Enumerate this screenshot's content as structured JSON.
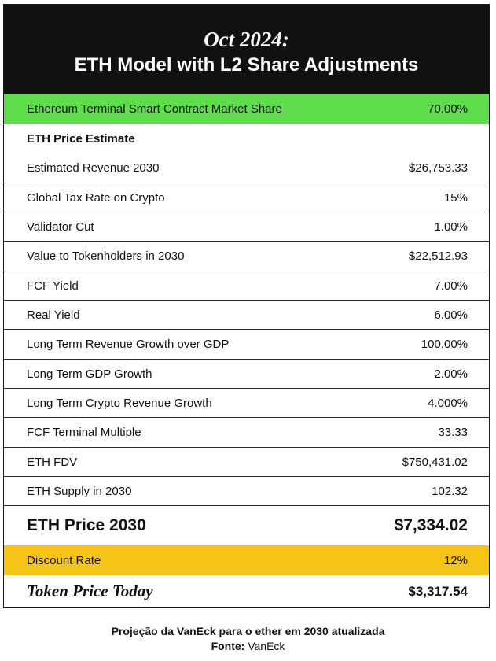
{
  "header": {
    "date": "Oct 2024:",
    "title": "ETH Model with L2 Share Adjustments"
  },
  "rows": [
    {
      "label": "Ethereum Terminal Smart Contract Market Share",
      "value": "70.00%"
    },
    {
      "label": "ETH Price Estimate",
      "value": ""
    },
    {
      "label": "Estimated Revenue 2030",
      "value": "$26,753.33"
    },
    {
      "label": "Global Tax Rate on Crypto",
      "value": "15%"
    },
    {
      "label": "Validator Cut",
      "value": "1.00%"
    },
    {
      "label": "Value to Tokenholders in 2030",
      "value": "$22,512.93"
    },
    {
      "label": "FCF Yield",
      "value": "7.00%"
    },
    {
      "label": "Real Yield",
      "value": "6.00%"
    },
    {
      "label": "Long Term Revenue Growth over GDP",
      "value": "100.00%"
    },
    {
      "label": "Long Term GDP Growth",
      "value": "2.00%"
    },
    {
      "label": "Long Term Crypto Revenue Growth",
      "value": "4.000%"
    },
    {
      "label": "FCF Terminal Multiple",
      "value": "33.33"
    },
    {
      "label": "ETH FDV",
      "value": "$750,431.02"
    },
    {
      "label": "ETH Supply in 2030",
      "value": "102.32"
    },
    {
      "label": "ETH Price 2030",
      "value": "$7,334.02"
    },
    {
      "label": "Discount Rate",
      "value": "12%"
    },
    {
      "label": "Token Price Today",
      "value": "$3,317.54"
    }
  ],
  "colors": {
    "header_bg": "#111111",
    "highlight_green": "#5fdd4c",
    "highlight_yellow": "#f6c317"
  },
  "caption": {
    "text": "Projeção da VanEck para o ether em 2030 atualizada",
    "source_label": "Fonte:",
    "source_value": "VanEck"
  }
}
